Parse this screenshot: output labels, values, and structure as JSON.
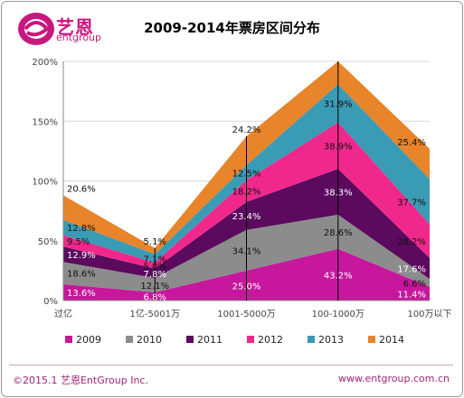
{
  "logo": {
    "cn": "艺恩",
    "en": "entgroup"
  },
  "chart_data": {
    "type": "area",
    "title": "2009-2014年票房区间分布",
    "categories": [
      "过亿",
      "1亿-5001万",
      "1001-5000万",
      "100-1000万",
      "100万以下"
    ],
    "ylim": [
      0,
      200
    ],
    "yticks": [
      "0%",
      "50%",
      "100%",
      "150%",
      "200%"
    ],
    "stacked": true,
    "series": [
      {
        "name": "2009",
        "color": "#c7179c",
        "values": [
          13.6,
          6.8,
          25.0,
          43.2,
          11.4
        ],
        "labels": [
          "13.6%",
          "6.8%",
          "25.0%",
          "43.2%",
          "11.4%"
        ]
      },
      {
        "name": "2010",
        "color": "#8c8c8c",
        "values": [
          18.6,
          12.1,
          34.1,
          28.6,
          6.6
        ],
        "labels": [
          "18.6%",
          "12.1%",
          "34.1%",
          "28.6%",
          "6.6%"
        ]
      },
      {
        "name": "2011",
        "color": "#5b0a5e",
        "values": [
          12.9,
          7.8,
          23.4,
          38.3,
          17.6
        ],
        "labels": [
          "12.9%",
          "7.8%",
          "23.4%",
          "38.3%",
          "17.6%"
        ]
      },
      {
        "name": "2012",
        "color": "#f0288c",
        "values": [
          9.5,
          5.0,
          18.2,
          38.9,
          28.2
        ],
        "labels": [
          "9.5%",
          "5.0%",
          "18.2%",
          "38.9%",
          "28.2%"
        ]
      },
      {
        "name": "2013",
        "color": "#3a9bb5",
        "values": [
          12.8,
          7.1,
          12.5,
          31.9,
          37.7
        ],
        "labels": [
          "12.8%",
          "7.1%",
          "12.5%",
          "31.9%",
          "37.7%"
        ]
      },
      {
        "name": "2014",
        "color": "#e8842a",
        "values": [
          20.6,
          5.1,
          24.2,
          20.0,
          25.4
        ],
        "labels": [
          "20.6%",
          "5.1%",
          "24.2%",
          "",
          "25.4%"
        ]
      }
    ],
    "grid": true,
    "legend_position": "bottom"
  },
  "footer": {
    "left": "©2015.1 艺恩EntGroup Inc.",
    "right": "www.entgroup.com.cn"
  }
}
